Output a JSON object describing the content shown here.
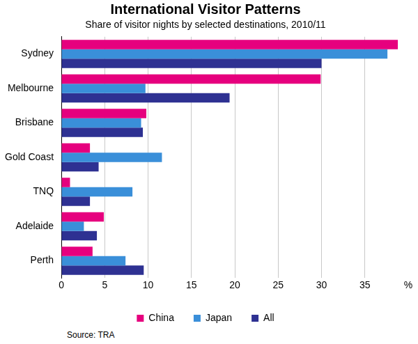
{
  "chart_data": {
    "type": "bar",
    "orientation": "horizontal",
    "title": "International Visitor Patterns",
    "subtitle": "Share of visitor nights by selected destinations, 2010/11",
    "source": "Source: TRA",
    "categories": [
      "Sydney",
      "Melbourne",
      "Brisbane",
      "Gold Coast",
      "TNQ",
      "Adelaide",
      "Perth"
    ],
    "series": [
      {
        "name": "China",
        "color": "#e6007e",
        "values": [
          38.8,
          29.9,
          9.8,
          3.3,
          1.0,
          4.9,
          3.6
        ]
      },
      {
        "name": "Japan",
        "color": "#3a8fd9",
        "values": [
          37.6,
          9.7,
          9.2,
          11.6,
          8.2,
          2.6,
          7.4
        ]
      },
      {
        "name": "All",
        "color": "#2e3192",
        "values": [
          30.0,
          19.4,
          9.4,
          4.3,
          3.3,
          4.1,
          9.5
        ]
      }
    ],
    "xlim": [
      0,
      40
    ],
    "xticks": [
      0,
      5,
      10,
      15,
      20,
      25,
      30,
      35,
      {
        "value": 40,
        "label": "%"
      }
    ],
    "grid": true,
    "legend": "bottom"
  }
}
